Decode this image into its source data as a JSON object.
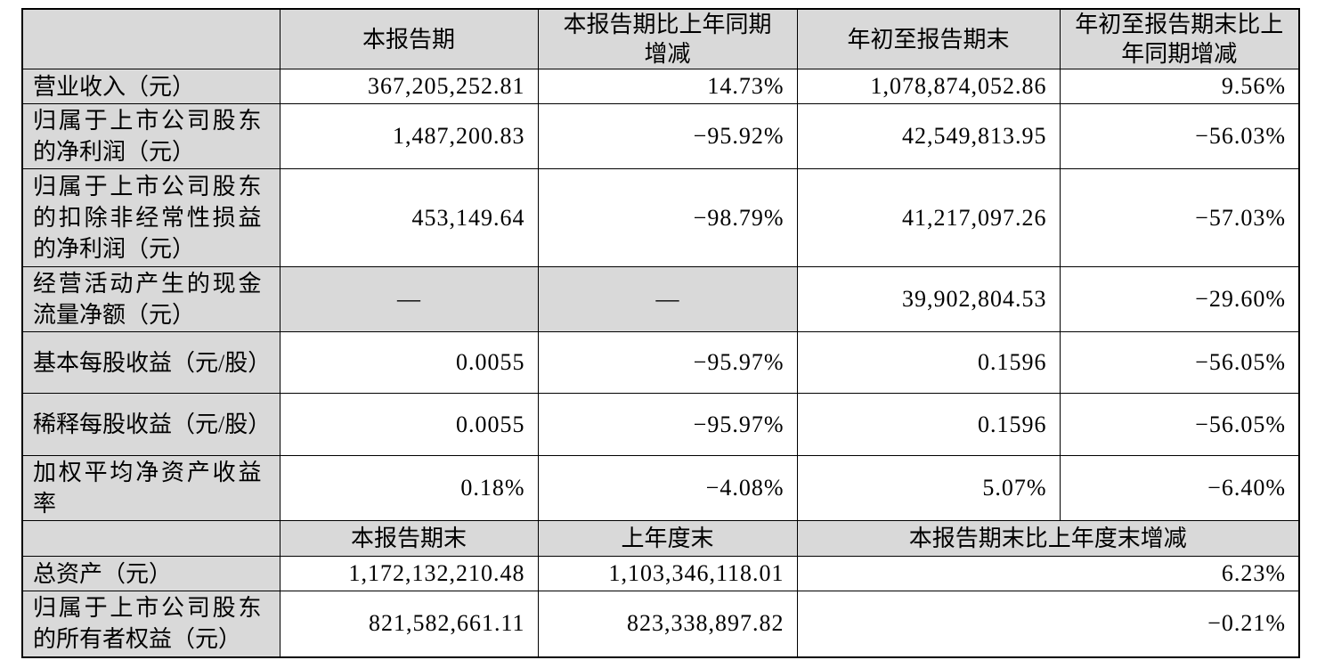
{
  "colors": {
    "header_bg": "#d9d9d9",
    "border": "#000000",
    "text": "#000000",
    "bg": "#ffffff"
  },
  "table": {
    "columns": [
      "",
      "本报告期",
      "本报告期比上年同期增减",
      "年初至报告期末",
      "年初至报告期末比上年同期增减"
    ],
    "rows": [
      {
        "label": "营业收入（元）",
        "values": [
          "367,205,252.81",
          "14.73%",
          "1,078,874,052.86",
          "9.56%"
        ]
      },
      {
        "label": "归属于上市公司股东的净利润（元）",
        "values": [
          "1,487,200.83",
          "−95.92%",
          "42,549,813.95",
          "−56.03%"
        ]
      },
      {
        "label": "归属于上市公司股东的扣除非经常性损益的净利润（元）",
        "values": [
          "453,149.64",
          "−98.79%",
          "41,217,097.26",
          "−57.03%"
        ]
      },
      {
        "label": "经营活动产生的现金流量净额（元）",
        "values": [
          "—",
          "—",
          "39,902,804.53",
          "−29.60%"
        ]
      },
      {
        "label": "基本每股收益（元/股）",
        "values": [
          "0.0055",
          "−95.97%",
          "0.1596",
          "−56.05%"
        ]
      },
      {
        "label": "稀释每股收益（元/股）",
        "values": [
          "0.0055",
          "−95.97%",
          "0.1596",
          "−56.05%"
        ]
      },
      {
        "label": "加权平均净资产收益率",
        "values": [
          "0.18%",
          "−4.08%",
          "5.07%",
          "−6.40%"
        ]
      }
    ],
    "subheader": {
      "empty": "",
      "period_end": "本报告期末",
      "prior_year_end": "上年度末",
      "change_merged": "本报告期末比上年度末增减"
    },
    "rows2": [
      {
        "label": "总资产（元）",
        "values": [
          "1,172,132,210.48",
          "1,103,346,118.01",
          "6.23%"
        ]
      },
      {
        "label": "归属于上市公司股东的所有者权益（元）",
        "values": [
          "821,582,661.11",
          "823,338,897.82",
          "−0.21%"
        ]
      }
    ]
  }
}
